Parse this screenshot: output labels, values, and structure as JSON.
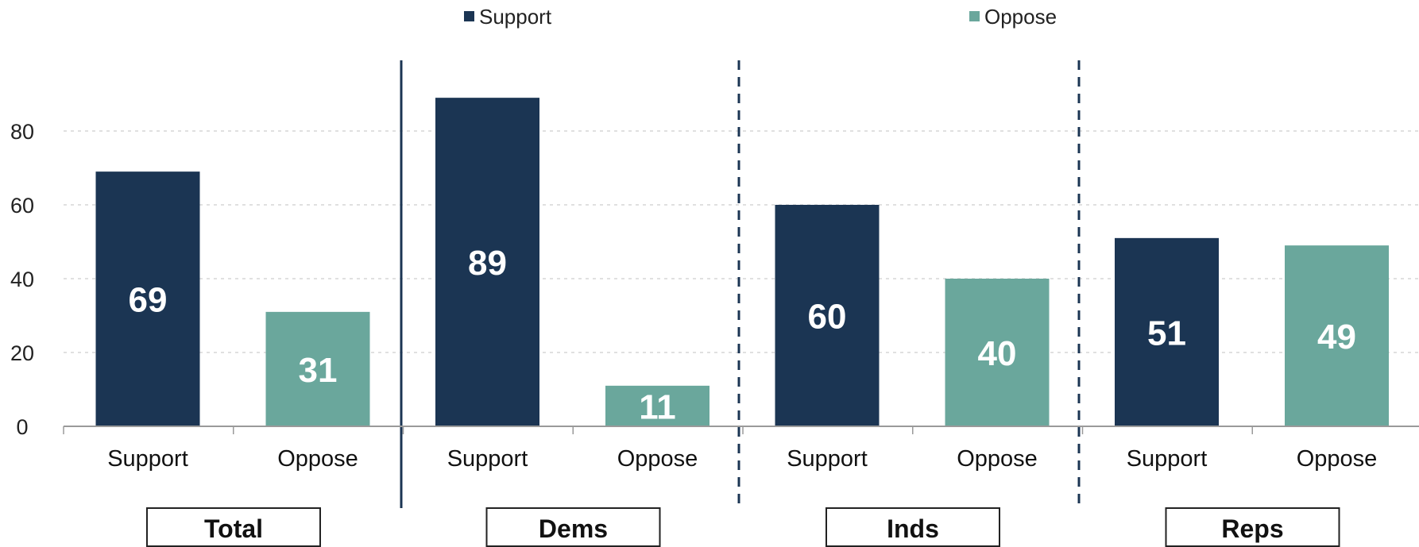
{
  "chart_data": {
    "type": "bar",
    "legend": [
      {
        "label": "Support",
        "color": "#1b3553"
      },
      {
        "label": "Oppose",
        "color": "#6aa79c"
      }
    ],
    "legend_placement": "top",
    "ylim": [
      0,
      100
    ],
    "yticks": [
      "0",
      "20",
      "40",
      "60",
      "80"
    ],
    "grid": true,
    "groups": [
      {
        "label": "Total",
        "bars": [
          {
            "category": "Support",
            "value": 69,
            "label": "69",
            "color": "#1b3553"
          },
          {
            "category": "Oppose",
            "value": 31,
            "label": "31",
            "color": "#6aa79c"
          }
        ]
      },
      {
        "label": "Dems",
        "bars": [
          {
            "category": "Support",
            "value": 89,
            "label": "89",
            "color": "#1b3553"
          },
          {
            "category": "Oppose",
            "value": 11,
            "label": "11",
            "color": "#6aa79c"
          }
        ]
      },
      {
        "label": "Inds",
        "bars": [
          {
            "category": "Support",
            "value": 60,
            "label": "60",
            "color": "#1b3553"
          },
          {
            "category": "Oppose",
            "value": 40,
            "label": "40",
            "color": "#6aa79c"
          }
        ]
      },
      {
        "label": "Reps",
        "bars": [
          {
            "category": "Support",
            "value": 51,
            "label": "51",
            "color": "#1b3553"
          },
          {
            "category": "Oppose",
            "value": 49,
            "label": "49",
            "color": "#6aa79c"
          }
        ]
      }
    ]
  }
}
